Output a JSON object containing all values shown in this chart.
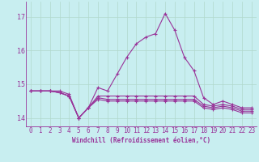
{
  "title": "",
  "xlabel": "Windchill (Refroidissement éolien,°C)",
  "ylabel": "",
  "background_color": "#c8eef0",
  "grid_color": "#b0d8cc",
  "line_color": "#993399",
  "x": [
    0,
    1,
    2,
    3,
    4,
    5,
    6,
    7,
    8,
    9,
    10,
    11,
    12,
    13,
    14,
    15,
    16,
    17,
    18,
    19,
    20,
    21,
    22,
    23
  ],
  "line1": [
    14.8,
    14.8,
    14.8,
    14.8,
    14.7,
    14.0,
    14.3,
    14.9,
    14.8,
    15.3,
    15.8,
    16.2,
    16.4,
    16.5,
    17.1,
    16.6,
    15.8,
    15.4,
    14.6,
    14.4,
    14.5,
    14.4,
    14.3,
    14.3
  ],
  "line2": [
    14.8,
    14.8,
    14.8,
    14.75,
    14.65,
    14.0,
    14.3,
    14.65,
    14.65,
    14.65,
    14.65,
    14.65,
    14.65,
    14.65,
    14.65,
    14.65,
    14.65,
    14.65,
    14.4,
    14.35,
    14.4,
    14.35,
    14.25,
    14.25
  ],
  "line3": [
    14.8,
    14.8,
    14.8,
    14.75,
    14.65,
    14.0,
    14.3,
    14.6,
    14.55,
    14.55,
    14.55,
    14.55,
    14.55,
    14.55,
    14.55,
    14.55,
    14.55,
    14.55,
    14.35,
    14.3,
    14.35,
    14.3,
    14.2,
    14.2
  ],
  "line4": [
    14.8,
    14.8,
    14.8,
    14.75,
    14.65,
    14.0,
    14.3,
    14.55,
    14.5,
    14.5,
    14.5,
    14.5,
    14.5,
    14.5,
    14.5,
    14.5,
    14.5,
    14.5,
    14.3,
    14.25,
    14.3,
    14.25,
    14.15,
    14.15
  ],
  "ylim": [
    13.75,
    17.45
  ],
  "xlim": [
    -0.5,
    23.5
  ],
  "yticks": [
    14,
    15,
    16,
    17
  ],
  "xticks": [
    0,
    1,
    2,
    3,
    4,
    5,
    6,
    7,
    8,
    9,
    10,
    11,
    12,
    13,
    14,
    15,
    16,
    17,
    18,
    19,
    20,
    21,
    22,
    23
  ],
  "marker": "+",
  "markersize": 3,
  "linewidth": 0.8,
  "tick_fontsize": 5.5,
  "xlabel_fontsize": 5.5
}
